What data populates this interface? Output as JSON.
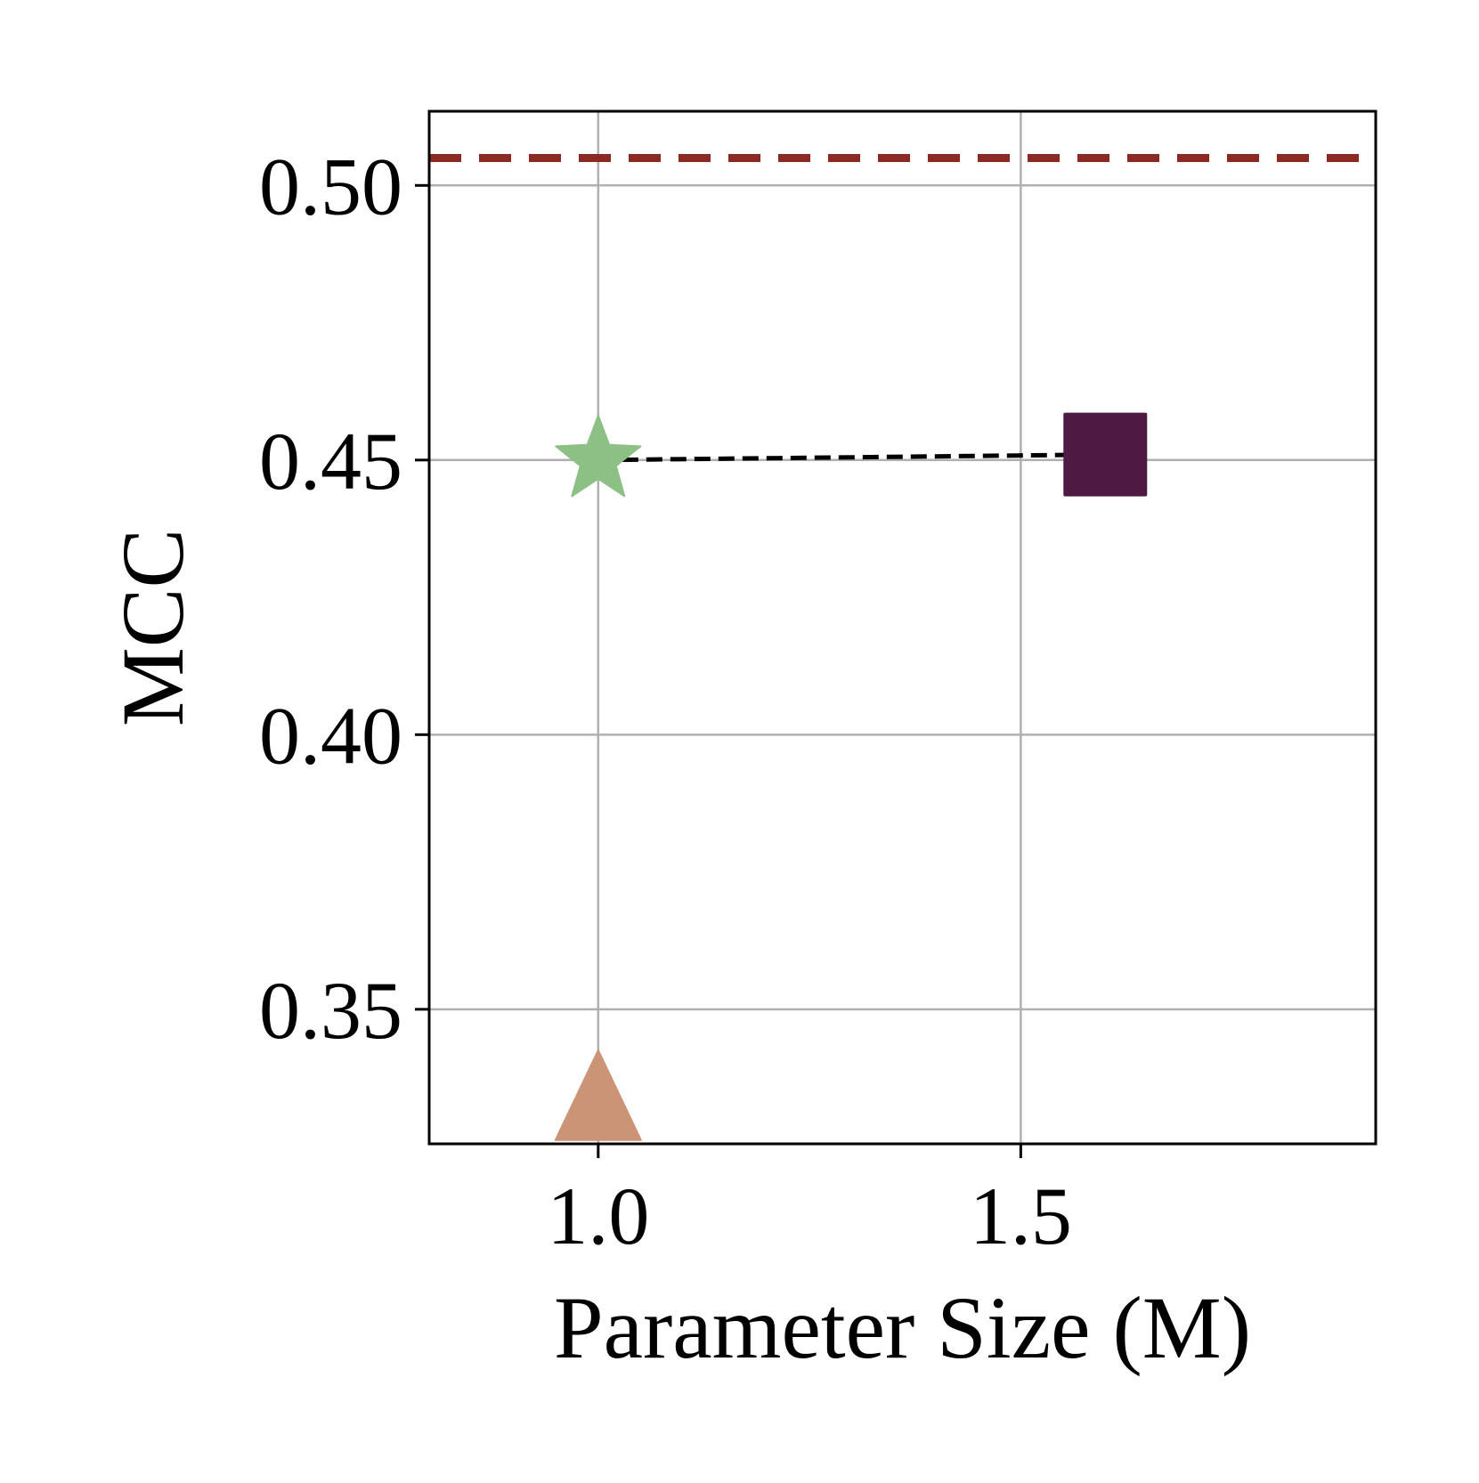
{
  "chart_data": {
    "type": "scatter",
    "title": "",
    "xlabel": "Parameter Size (M)",
    "ylabel": "MCC",
    "xlim": [
      0.8,
      1.92
    ],
    "ylim": [
      0.3255,
      0.5135
    ],
    "xticks": [
      {
        "value": 1.0,
        "label": "1.0"
      },
      {
        "value": 1.5,
        "label": "1.5"
      }
    ],
    "yticks": [
      {
        "value": 0.35,
        "label": "0.35"
      },
      {
        "value": 0.4,
        "label": "0.40"
      },
      {
        "value": 0.45,
        "label": "0.45"
      },
      {
        "value": 0.5,
        "label": "0.50"
      }
    ],
    "grid": true,
    "points": [
      {
        "x": 1.0,
        "y": 0.45,
        "marker": "star",
        "color": "#8cc084"
      },
      {
        "x": 1.6,
        "y": 0.451,
        "marker": "square",
        "color": "#4e1942"
      },
      {
        "x": 1.0,
        "y": 0.327,
        "marker": "triangle",
        "color": "#cc9476"
      }
    ],
    "connector": {
      "x": [
        1.0,
        1.6
      ],
      "y": [
        0.45,
        0.451
      ],
      "style": "dashed",
      "color": "#000000"
    },
    "reference_line": {
      "y": 0.505,
      "style": "dashed",
      "color": "#8b2a22"
    }
  }
}
